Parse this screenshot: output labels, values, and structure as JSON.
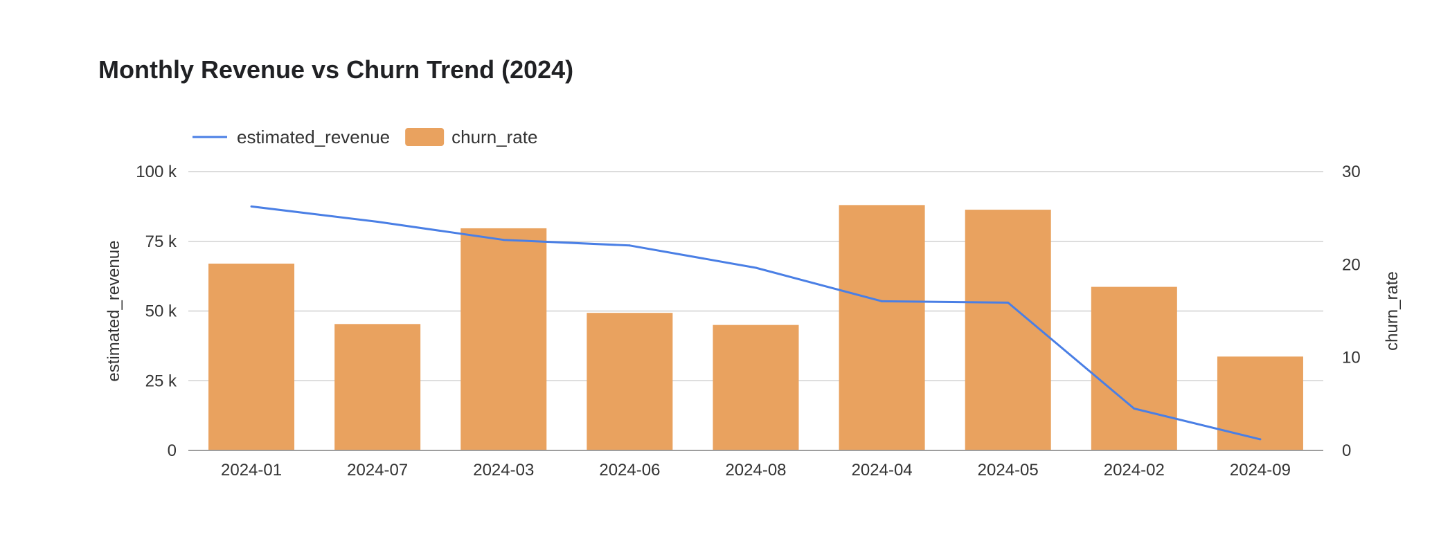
{
  "chart_data": {
    "type": "bar",
    "title": "Monthly Revenue vs Churn Trend (2024)",
    "categories": [
      "2024-01",
      "2024-07",
      "2024-03",
      "2024-06",
      "2024-08",
      "2024-04",
      "2024-05",
      "2024-02",
      "2024-09"
    ],
    "series": [
      {
        "name": "estimated_revenue",
        "type": "line",
        "axis": "left",
        "color": "#4a7fe5",
        "values": [
          87500,
          82000,
          75500,
          73500,
          65500,
          53500,
          53000,
          15000,
          4000
        ]
      },
      {
        "name": "churn_rate",
        "type": "bar",
        "axis": "right",
        "color": "#e9a25f",
        "values": [
          20.1,
          13.6,
          23.9,
          14.8,
          13.5,
          26.4,
          25.9,
          17.6,
          10.1
        ]
      }
    ],
    "y_left": {
      "label": "estimated_revenue",
      "range": [
        0,
        100000
      ],
      "ticks": [
        0,
        25000,
        50000,
        75000,
        100000
      ],
      "tick_labels": [
        "0",
        "25 k",
        "50 k",
        "75 k",
        "100 k"
      ]
    },
    "y_right": {
      "label": "churn_rate",
      "range": [
        0,
        30
      ],
      "ticks": [
        0,
        10,
        20,
        30
      ],
      "tick_labels": [
        "0",
        "10",
        "20",
        "30"
      ]
    },
    "grid": true,
    "legend_position": "top-left"
  }
}
